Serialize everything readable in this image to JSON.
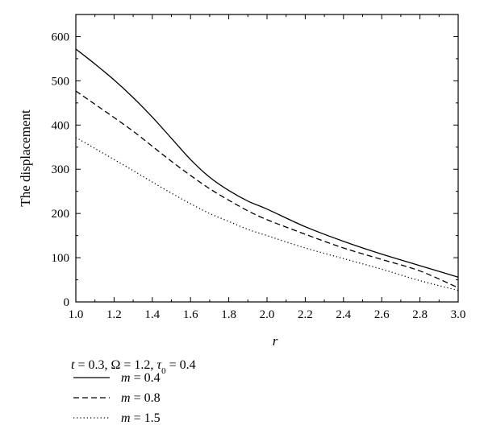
{
  "chart_data": {
    "type": "line",
    "title": "",
    "xlabel": "r",
    "ylabel": "The displacement",
    "xlim": [
      1.0,
      3.0
    ],
    "ylim": [
      0,
      650
    ],
    "xticks": [
      "1.0",
      "1.2",
      "1.4",
      "1.6",
      "1.8",
      "2.0",
      "2.2",
      "2.4",
      "2.6",
      "2.8",
      "3.0"
    ],
    "yticks": [
      "0",
      "100",
      "200",
      "300",
      "400",
      "500",
      "600"
    ],
    "grid": false,
    "legend_position": "bottom-left",
    "parameters": {
      "t": "0.3",
      "omega": "1.2",
      "tau0": "0.4"
    },
    "x": [
      1.0,
      1.1,
      1.2,
      1.3,
      1.4,
      1.5,
      1.6,
      1.7,
      1.8,
      1.9,
      2.0,
      2.2,
      2.4,
      2.6,
      2.8,
      3.0
    ],
    "series": [
      {
        "name": "m = 0.4",
        "m_value": "0.4",
        "style": "solid",
        "values": [
          572,
          538,
          502,
          462,
          418,
          370,
          322,
          282,
          252,
          228,
          210,
          170,
          137,
          108,
          82,
          56
        ]
      },
      {
        "name": "m = 0.8",
        "m_value": "0.8",
        "style": "dashed",
        "values": [
          477,
          447,
          417,
          386,
          352,
          318,
          286,
          256,
          230,
          206,
          186,
          153,
          122,
          96,
          70,
          32
        ]
      },
      {
        "name": "m = 1.5",
        "m_value": "1.5",
        "style": "dotted",
        "values": [
          372,
          347,
          322,
          297,
          271,
          246,
          222,
          200,
          182,
          164,
          150,
          122,
          98,
          74,
          48,
          26
        ]
      }
    ]
  }
}
